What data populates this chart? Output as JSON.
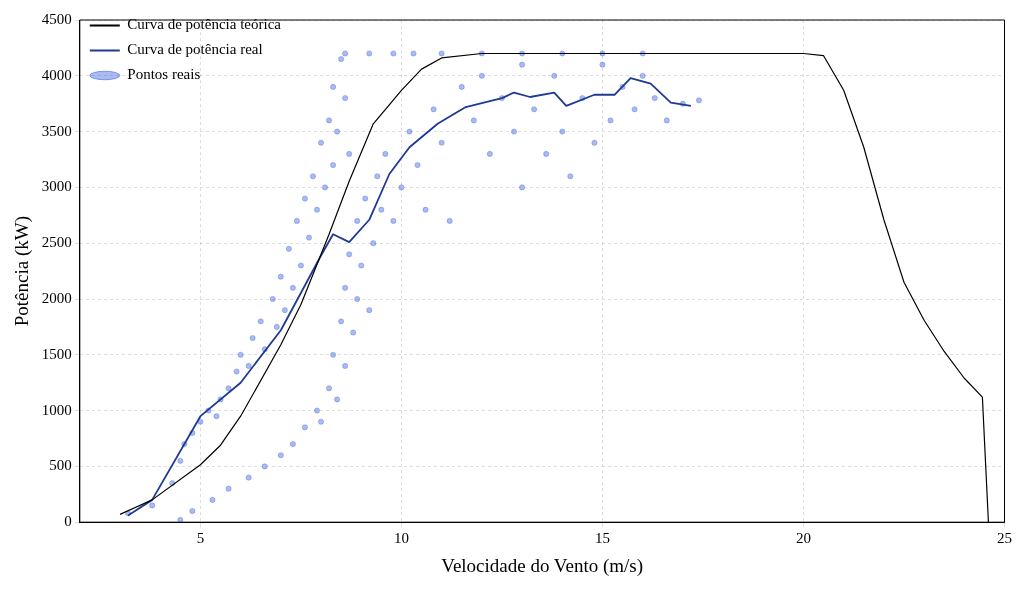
{
  "chart_data": {
    "type": "scatter",
    "xlabel": "Velocidade do Vento (m/s)",
    "ylabel": "Potência (kW)",
    "xlim": [
      2,
      25
    ],
    "xticks": [
      5,
      10,
      15,
      20,
      25
    ],
    "ylim": [
      0,
      4500
    ],
    "yticks": [
      0,
      500,
      1000,
      1500,
      2000,
      2500,
      3000,
      3500,
      4000,
      4500
    ],
    "grid": true,
    "legend": "top left",
    "series": [
      {
        "name": "Curva de potência teórica",
        "type": "line",
        "color": "#000000",
        "marker": "none",
        "x": [
          3,
          3.8,
          5,
          5.5,
          6,
          7,
          7.5,
          8.2,
          8.7,
          9.3,
          10,
          10.5,
          11,
          12,
          20,
          20.5,
          21,
          21.5,
          22,
          22.5,
          23,
          23.5,
          24,
          24.45,
          24.6
        ],
        "values": [
          70,
          200,
          515,
          690,
          950,
          1590,
          1950,
          2580,
          3055,
          3570,
          3870,
          4060,
          4160,
          4200,
          4200,
          4180,
          3870,
          3360,
          2710,
          2150,
          1810,
          1530,
          1290,
          1120,
          0
        ]
      },
      {
        "name": "Curva de potência real",
        "type": "line",
        "color": "#1f3a93",
        "marker": "none",
        "x": [
          3.2,
          3.8,
          5,
          6,
          7,
          8,
          8.3,
          8.7,
          9.2,
          9.7,
          10.2,
          10.9,
          11.6,
          12.5,
          12.8,
          13.2,
          13.8,
          14.1,
          14.8,
          15.3,
          15.7,
          16.2,
          16.7,
          17.2
        ],
        "values": [
          60,
          200,
          950,
          1250,
          1720,
          2390,
          2580,
          2510,
          2710,
          3120,
          3360,
          3570,
          3720,
          3800,
          3850,
          3810,
          3850,
          3730,
          3830,
          3830,
          3980,
          3930,
          3760,
          3730
        ]
      },
      {
        "name": "Pontos reais",
        "type": "scatter",
        "color": "#4169e1",
        "marker": "circle",
        "x": [
          4.3,
          4.5,
          4.6,
          4.8,
          5,
          5.2,
          5.4,
          5.5,
          5.7,
          5.9,
          6,
          6.2,
          6.3,
          6.5,
          6.6,
          6.8,
          6.9,
          7,
          7.1,
          7.2,
          7.3,
          7.4,
          7.5,
          7.6,
          7.7,
          7.8,
          7.9,
          8,
          8.1,
          8.2,
          8.3,
          8.3,
          8.4,
          8.5,
          8.6,
          8.7,
          4.8,
          5.3,
          5.7,
          6.2,
          6.6,
          7,
          7.3,
          7.6,
          7.9,
          8,
          8.2,
          8.3,
          8.4,
          8.5,
          8.6,
          8.6,
          8.7,
          8.8,
          8.9,
          8.9,
          9,
          9.1,
          9.2,
          9.3,
          9.4,
          9.5,
          9.6,
          9.8,
          10,
          10.2,
          10.4,
          10.6,
          10.8,
          11,
          11.2,
          11.5,
          11.8,
          12,
          12.2,
          12.5,
          12.8,
          13,
          13,
          13.3,
          13.6,
          13.8,
          14,
          14.2,
          14.5,
          14.8,
          15,
          15.2,
          15.5,
          15.8,
          16,
          16.3,
          16.6,
          17,
          17.4,
          8.6,
          9.2,
          9.8,
          10.3,
          11,
          12,
          13,
          14,
          15,
          16,
          3.2,
          3.8,
          4.5
        ],
        "values": [
          350,
          550,
          700,
          800,
          900,
          1000,
          950,
          1100,
          1200,
          1350,
          1500,
          1400,
          1650,
          1800,
          1550,
          2000,
          1750,
          2200,
          1900,
          2450,
          2100,
          2700,
          2300,
          2900,
          2550,
          3100,
          2800,
          3400,
          3000,
          3600,
          3200,
          3900,
          3500,
          4150,
          3800,
          3300,
          100,
          200,
          300,
          400,
          500,
          600,
          700,
          850,
          1000,
          900,
          1200,
          1500,
          1100,
          1800,
          2100,
          1400,
          2400,
          1700,
          2000,
          2700,
          2300,
          2900,
          1900,
          2500,
          3100,
          2800,
          3300,
          2700,
          3000,
          3500,
          3200,
          2800,
          3700,
          3400,
          2700,
          3900,
          3600,
          4000,
          3300,
          3800,
          3500,
          4100,
          3000,
          3700,
          3300,
          4000,
          3500,
          3100,
          3800,
          3400,
          4100,
          3600,
          3900,
          3700,
          4000,
          3800,
          3600,
          3750,
          3780,
          4200,
          4200,
          4200,
          4200,
          4200,
          4200,
          4200,
          4200,
          4200,
          4200,
          80,
          150,
          20
        ]
      }
    ]
  }
}
